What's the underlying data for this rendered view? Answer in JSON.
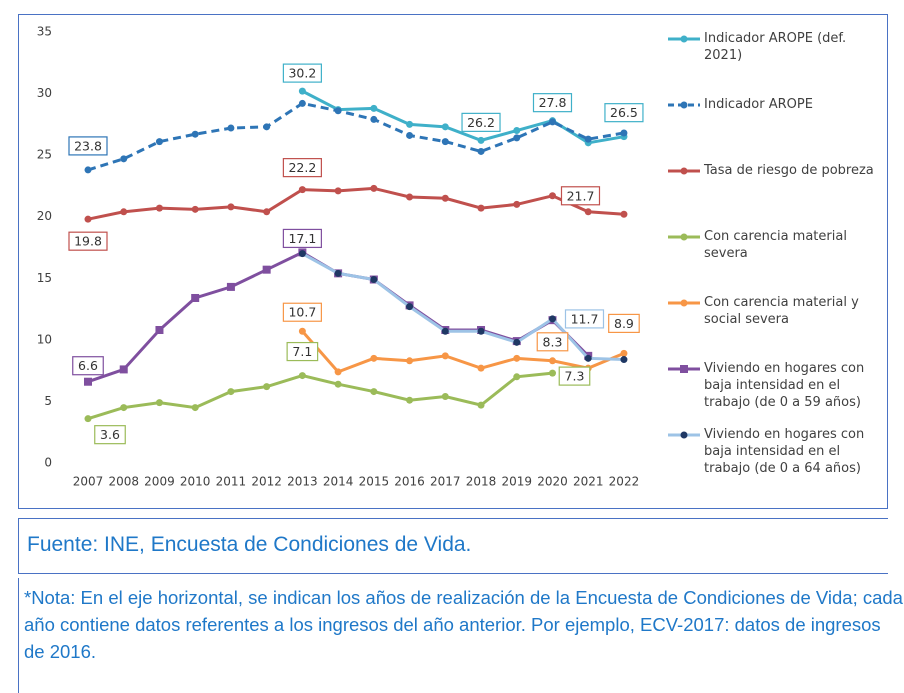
{
  "chart_data": {
    "type": "line",
    "categories": [
      "2007",
      "2008",
      "2009",
      "2010",
      "2011",
      "2012",
      "2013",
      "2014",
      "2015",
      "2016",
      "2017",
      "2018",
      "2019",
      "2020",
      "2021",
      "2022"
    ],
    "ylim": [
      0,
      35
    ],
    "yticks": [
      0,
      5,
      10,
      15,
      20,
      25,
      30,
      35
    ],
    "grid": false,
    "series": [
      {
        "name": "Indicador AROPE (def. 2021)",
        "color": "#3fb0c9",
        "marker": "circle",
        "values": [
          null,
          null,
          null,
          null,
          null,
          null,
          30.2,
          28.7,
          28.8,
          27.5,
          27.3,
          26.2,
          27.0,
          27.8,
          26.0,
          26.5
        ],
        "value_labels": [
          null,
          null,
          null,
          null,
          null,
          null,
          "30.2",
          null,
          null,
          null,
          null,
          "26.2",
          null,
          "27.8",
          null,
          "26.5"
        ]
      },
      {
        "name": "Indicador AROPE",
        "color": "#2e75b6",
        "marker": "circle",
        "dash": true,
        "values": [
          23.8,
          24.7,
          26.1,
          26.7,
          27.2,
          27.3,
          29.2,
          28.6,
          27.9,
          26.6,
          26.1,
          25.3,
          26.4,
          27.7,
          26.3,
          26.8
        ],
        "value_labels": [
          "23.8",
          null,
          null,
          null,
          null,
          null,
          null,
          null,
          null,
          null,
          null,
          null,
          null,
          null,
          null,
          null
        ]
      },
      {
        "name": "Tasa de riesgo de pobreza",
        "color": "#c0504d",
        "marker": "circle",
        "values": [
          19.8,
          20.4,
          20.7,
          20.6,
          20.8,
          20.4,
          22.2,
          22.1,
          22.3,
          21.6,
          21.5,
          20.7,
          21.0,
          21.7,
          20.4,
          20.2
        ],
        "value_labels": [
          "19.8",
          null,
          null,
          null,
          null,
          null,
          "22.2",
          null,
          null,
          null,
          null,
          null,
          null,
          "21.7",
          null,
          null
        ]
      },
      {
        "name": "Con carencia material severa",
        "color": "#9bbb59",
        "marker": "circle",
        "values": [
          3.6,
          4.5,
          4.9,
          4.5,
          5.8,
          6.2,
          7.1,
          6.4,
          5.8,
          5.1,
          5.4,
          4.7,
          7.0,
          7.3,
          null,
          null
        ],
        "value_labels": [
          "3.6",
          null,
          null,
          null,
          null,
          null,
          "7.1",
          null,
          null,
          null,
          null,
          null,
          null,
          "7.3",
          null,
          null
        ]
      },
      {
        "name": "Con carencia material y social severa",
        "color": "#f79646",
        "marker": "circle",
        "values": [
          null,
          null,
          null,
          null,
          null,
          null,
          10.7,
          7.4,
          8.5,
          8.3,
          8.7,
          7.7,
          8.5,
          8.3,
          7.7,
          8.9
        ],
        "value_labels": [
          null,
          null,
          null,
          null,
          null,
          null,
          "10.7",
          null,
          null,
          null,
          null,
          null,
          null,
          "8.3",
          null,
          "8.9"
        ]
      },
      {
        "name": "Viviendo en hogares con baja intensidad en el trabajo (de 0 a 59 años)",
        "color": "#7f4f9f",
        "marker": "square",
        "values": [
          6.6,
          7.6,
          10.8,
          13.4,
          14.3,
          15.7,
          17.1,
          15.4,
          14.9,
          12.8,
          10.8,
          10.8,
          9.9,
          11.6,
          8.7,
          null
        ],
        "value_labels": [
          "6.6",
          null,
          null,
          null,
          null,
          null,
          "17.1",
          null,
          null,
          null,
          null,
          null,
          null,
          null,
          null,
          null
        ]
      },
      {
        "name": "Viviendo en hogares con baja intensidad en el trabajo (de 0 a 64 años)",
        "color": "#9dc3e6",
        "marker": "circle",
        "marker_color": "#1f3864",
        "values": [
          null,
          null,
          null,
          null,
          null,
          null,
          17.0,
          15.4,
          14.9,
          12.7,
          10.7,
          10.7,
          9.8,
          11.7,
          8.5,
          8.4
        ],
        "value_labels": [
          null,
          null,
          null,
          null,
          null,
          null,
          null,
          null,
          null,
          null,
          null,
          null,
          null,
          "11.7",
          null,
          null
        ]
      }
    ]
  },
  "source": "Fuente: INE, Encuesta de Condiciones de Vida.",
  "note": "*Nota: En el eje horizontal, se indican los años de realización de la Encuesta de Condiciones de Vida; cada año contiene datos referentes a los ingresos del año anterior. Por ejemplo, ECV-2017: datos de ingresos de 2016."
}
